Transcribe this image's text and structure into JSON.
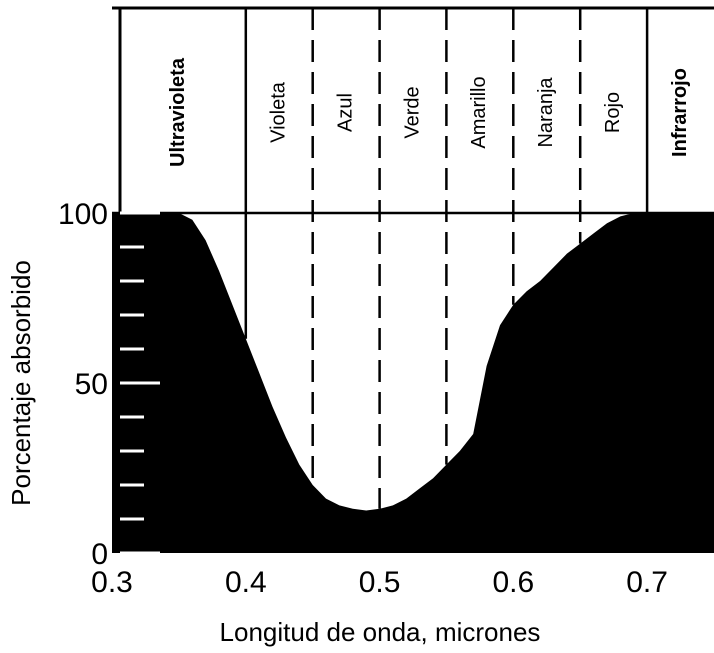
{
  "chart_data": {
    "type": "area",
    "title": "",
    "xlabel": "Longitud de onda, micrones",
    "ylabel": "Porcentaje absorbido",
    "xlim": [
      0.3,
      0.75
    ],
    "ylim": [
      0,
      100
    ],
    "x_ticks": [
      "0.3",
      "0.4",
      "0.5",
      "0.6",
      "0.7"
    ],
    "y_ticks": [
      "0",
      "50",
      "100"
    ],
    "grid": false,
    "fill_color": "#000000",
    "bands": [
      {
        "label": "Ultravioleta",
        "start": 0.3,
        "end": 0.4,
        "bold": true
      },
      {
        "label": "Violeta",
        "start": 0.4,
        "end": 0.45,
        "bold": false
      },
      {
        "label": "Azul",
        "start": 0.45,
        "end": 0.5,
        "bold": false
      },
      {
        "label": "Verde",
        "start": 0.5,
        "end": 0.55,
        "bold": false
      },
      {
        "label": "Amarillo",
        "start": 0.55,
        "end": 0.6,
        "bold": false
      },
      {
        "label": "Naranja",
        "start": 0.6,
        "end": 0.65,
        "bold": false
      },
      {
        "label": "Rojo",
        "start": 0.65,
        "end": 0.7,
        "bold": false
      },
      {
        "label": "Infrarrojo",
        "start": 0.7,
        "end": 0.75,
        "bold": true
      }
    ],
    "series": [
      {
        "x": [
          0.3,
          0.35,
          0.36,
          0.37,
          0.38,
          0.39,
          0.4,
          0.41,
          0.42,
          0.43,
          0.44,
          0.45,
          0.46,
          0.47,
          0.48,
          0.49,
          0.5,
          0.51,
          0.52,
          0.53,
          0.54,
          0.55,
          0.56,
          0.57,
          0.575,
          0.58,
          0.59,
          0.6,
          0.61,
          0.62,
          0.63,
          0.64,
          0.65,
          0.66,
          0.67,
          0.68,
          0.69,
          0.7,
          0.72,
          0.75
        ],
        "y": [
          100,
          100,
          98,
          92,
          83,
          73,
          63,
          53,
          43,
          34,
          26,
          20,
          16,
          14,
          13,
          12.5,
          13,
          14,
          16,
          19,
          22,
          26,
          30,
          35,
          45,
          55,
          67,
          73,
          77,
          80,
          84,
          88,
          91,
          94,
          97,
          99,
          100,
          100,
          100,
          100
        ]
      }
    ]
  }
}
